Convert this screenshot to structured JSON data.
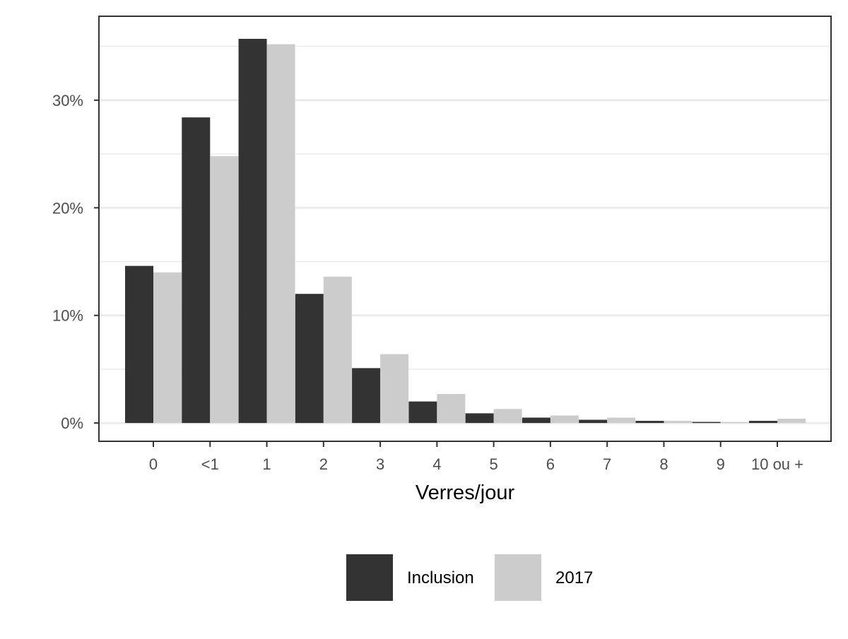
{
  "chart_data": {
    "type": "bar",
    "title": "",
    "xlabel": "Verres/jour",
    "ylabel": "",
    "categories": [
      "0",
      "<1",
      "1",
      "2",
      "3",
      "4",
      "5",
      "6",
      "7",
      "8",
      "9",
      "10 ou +"
    ],
    "series": [
      {
        "name": "Inclusion",
        "color": "#333333",
        "values": [
          14.6,
          28.4,
          35.7,
          12.0,
          5.1,
          2.0,
          0.9,
          0.5,
          0.3,
          0.2,
          0.1,
          0.2
        ]
      },
      {
        "name": "2017",
        "color": "#cccccc",
        "values": [
          14.0,
          24.8,
          35.2,
          13.6,
          6.4,
          2.7,
          1.3,
          0.7,
          0.5,
          0.2,
          0.1,
          0.4
        ]
      }
    ],
    "ylim": [
      -1.7,
      37.8
    ],
    "yticks": [
      0,
      10,
      20,
      30
    ],
    "ytick_labels": [
      "0%",
      "10%",
      "20%",
      "30%"
    ],
    "grid": true,
    "legend_position": "bottom"
  }
}
